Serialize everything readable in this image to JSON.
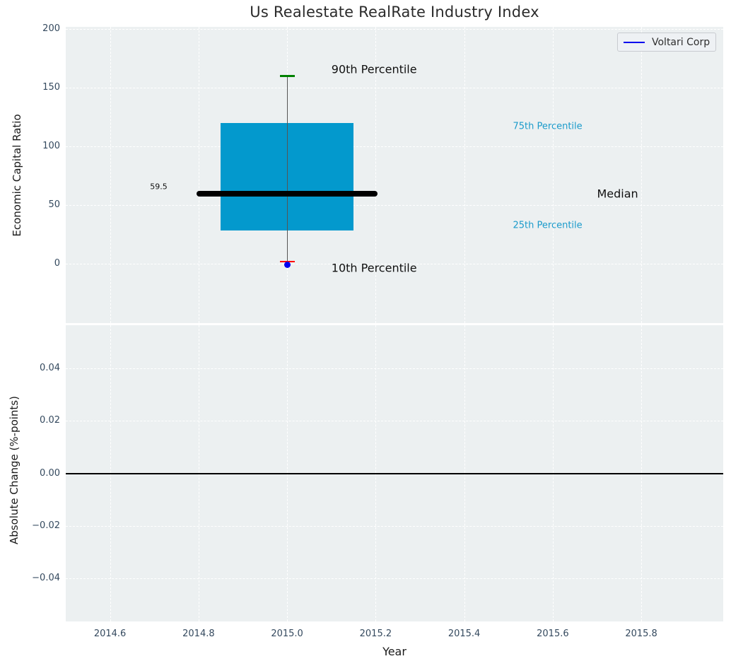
{
  "colors": {
    "figure_bg": "#ffffff",
    "axes_bg": "#ecf0f1",
    "grid": "#ffffff",
    "tick_label": "#34495e",
    "accent_blue": "#0000ee"
  },
  "chart_data": [
    {
      "type": "boxplot",
      "title": "Us Realestate RealRate Industry Index",
      "ylabel": "Economic Capital Ratio",
      "legend": {
        "label": "Voltari Corp",
        "position": "upper right",
        "line_color": "#0000ee"
      },
      "xlim": [
        2014.5,
        2015.985
      ],
      "ylim": [
        -50.6,
        201.8
      ],
      "grid": {
        "visible": true,
        "style": "dashed",
        "color": "#ffffff"
      },
      "yticks": [
        {
          "value": 200,
          "label": "200"
        },
        {
          "value": 150,
          "label": "150"
        },
        {
          "value": 100,
          "label": "100"
        },
        {
          "value": 50,
          "label": "50"
        },
        {
          "value": 0,
          "label": "0"
        }
      ],
      "xticks": [
        {
          "value": 2014.6,
          "label": "2014.6"
        },
        {
          "value": 2014.8,
          "label": "2014.8"
        },
        {
          "value": 2015.0,
          "label": "2015.0"
        },
        {
          "value": 2015.2,
          "label": "2015.2"
        },
        {
          "value": 2015.4,
          "label": "2015.4"
        },
        {
          "value": 2015.6,
          "label": "2015.6"
        },
        {
          "value": 2015.8,
          "label": "2015.8"
        }
      ],
      "box": {
        "x": 2015.0,
        "p90": 160,
        "p75": 120,
        "median": 59.5,
        "p25": 28,
        "p10": 2,
        "box_half_width": 0.15,
        "median_half_width": 0.205,
        "cap_half_width": 0.017,
        "fill_color": "#0399cd",
        "median_color": "#000000",
        "whisker_color": "#555555",
        "p90_cap_color": "#008000",
        "p10_cap_color": "#ff0000"
      },
      "company_point": {
        "name": "Voltari Corp",
        "x": 2015.0,
        "y": 0,
        "color": "#0000ee"
      },
      "annotations": [
        {
          "text": "90th Percentile",
          "x": 2015.1,
          "y": 165.5,
          "color": "#101010",
          "size": 16,
          "align": "left"
        },
        {
          "text": "75th Percentile",
          "x": 2015.51,
          "y": 116.8,
          "color": "#1b9bcb",
          "size": 13,
          "align": "left"
        },
        {
          "text": "Median",
          "x": 2015.7,
          "y": 59.5,
          "color": "#101010",
          "size": 16,
          "align": "left"
        },
        {
          "text": "25th Percentile",
          "x": 2015.51,
          "y": 32.4,
          "color": "#1b9bcb",
          "size": 13,
          "align": "left"
        },
        {
          "text": "10th Percentile",
          "x": 2015.1,
          "y": -3.6,
          "color": "#101010",
          "size": 16,
          "align": "left"
        },
        {
          "text": "59.5",
          "x": 2014.71,
          "y": 65.8,
          "color": "#101010",
          "size": 11,
          "align": "center"
        }
      ]
    },
    {
      "type": "line",
      "ylabel": "Absolute Change (%-points)",
      "xlabel": "Year",
      "xlim": [
        2014.5,
        2015.985
      ],
      "ylim": [
        -0.0565,
        0.0565
      ],
      "grid": {
        "visible": true,
        "style": "dashed",
        "color": "#ffffff"
      },
      "yticks": [
        {
          "value": 0.04,
          "label": "0.04"
        },
        {
          "value": 0.02,
          "label": "0.02"
        },
        {
          "value": 0.0,
          "label": "0.00"
        },
        {
          "value": -0.02,
          "label": "−0.02"
        },
        {
          "value": -0.04,
          "label": "−0.04"
        }
      ],
      "xticks": [
        {
          "value": 2014.6,
          "label": "2014.6"
        },
        {
          "value": 2014.8,
          "label": "2014.8"
        },
        {
          "value": 2015.0,
          "label": "2015.0"
        },
        {
          "value": 2015.2,
          "label": "2015.2"
        },
        {
          "value": 2015.4,
          "label": "2015.4"
        },
        {
          "value": 2015.6,
          "label": "2015.6"
        },
        {
          "value": 2015.8,
          "label": "2015.8"
        }
      ],
      "zero_line": {
        "y": 0,
        "color": "#000000"
      },
      "series": []
    }
  ]
}
